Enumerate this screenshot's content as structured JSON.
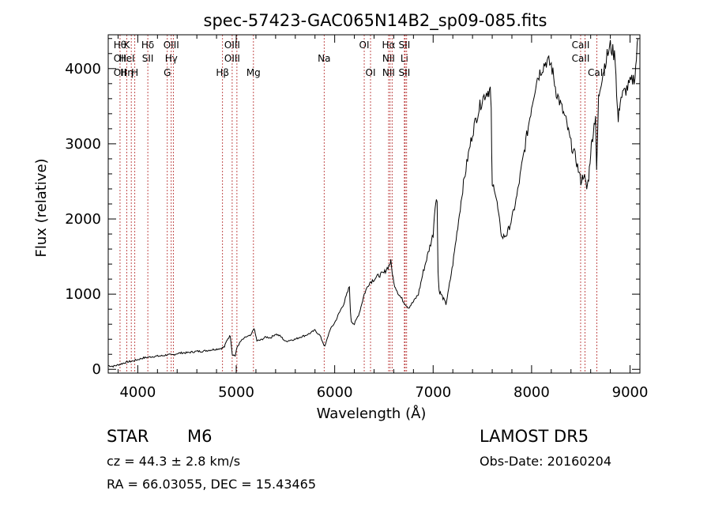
{
  "chart_data": {
    "type": "line",
    "title": "spec-57423-GAC065N14B2_sp09-085.fits",
    "xlabel": "Wavelength (Å)",
    "ylabel": "Flux (relative)",
    "xlim": [
      3700,
      9100
    ],
    "ylim": [
      -50,
      4450
    ],
    "xticks": [
      "4000",
      "5000",
      "6000",
      "7000",
      "8000",
      "9000"
    ],
    "yticks": [
      "0",
      "1000",
      "2000",
      "3000",
      "4000"
    ],
    "grid": false,
    "series": [
      {
        "x": [
          3700,
          3750,
          3800,
          3850,
          3900,
          3950,
          4000,
          4050,
          4100,
          4150,
          4200,
          4250,
          4300,
          4350,
          4400,
          4450,
          4500,
          4550,
          4600,
          4650,
          4700,
          4750,
          4800,
          4850,
          4880,
          4910,
          4940,
          4960,
          4990,
          5010,
          5050,
          5100,
          5150,
          5180,
          5210,
          5250,
          5300,
          5350,
          5400,
          5450,
          5500,
          5550,
          5600,
          5650,
          5700,
          5750,
          5800,
          5850,
          5900,
          5950,
          6000,
          6050,
          6100,
          6150,
          6160,
          6170,
          6200,
          6250,
          6300,
          6350,
          6400,
          6450,
          6500,
          6550,
          6570,
          6600,
          6650,
          6700,
          6750,
          6800,
          6850,
          6900,
          6950,
          7000,
          7020,
          7040,
          7050,
          7060,
          7080,
          7100,
          7130,
          7150,
          7200,
          7250,
          7300,
          7350,
          7400,
          7450,
          7500,
          7550,
          7580,
          7590,
          7600,
          7620,
          7650,
          7680,
          7700,
          7750,
          7800,
          7850,
          7900,
          7950,
          8000,
          8050,
          8100,
          8150,
          8200,
          8250,
          8300,
          8350,
          8400,
          8450,
          8500,
          8530,
          8560,
          8580,
          8600,
          8620,
          8650,
          8660,
          8680,
          8700,
          8750,
          8800,
          8850,
          8870,
          8880,
          8900,
          8950,
          9000,
          9050,
          9080
        ],
        "y": [
          50,
          40,
          60,
          80,
          100,
          110,
          130,
          150,
          160,
          170,
          175,
          180,
          195,
          190,
          210,
          220,
          220,
          230,
          240,
          240,
          250,
          260,
          270,
          280,
          300,
          400,
          450,
          200,
          180,
          300,
          380,
          430,
          450,
          550,
          380,
          390,
          430,
          420,
          470,
          440,
          370,
          390,
          400,
          430,
          450,
          480,
          520,
          450,
          300,
          520,
          620,
          760,
          900,
          1100,
          750,
          640,
          600,
          750,
          1000,
          1150,
          1200,
          1250,
          1280,
          1380,
          1430,
          1150,
          1000,
          900,
          820,
          900,
          1000,
          1300,
          1550,
          1800,
          2200,
          2250,
          1300,
          1050,
          1000,
          950,
          870,
          1000,
          1400,
          1900,
          2400,
          2800,
          3150,
          3400,
          3600,
          3700,
          3720,
          3400,
          2400,
          2450,
          2200,
          1900,
          1750,
          1800,
          2000,
          2300,
          2700,
          3100,
          3500,
          3850,
          4000,
          4100,
          4050,
          3700,
          3500,
          3300,
          3000,
          2800,
          2500,
          2600,
          2400,
          2550,
          2900,
          3100,
          3400,
          2600,
          3600,
          3800,
          4100,
          4300,
          4150,
          3500,
          3300,
          3600,
          3700,
          3800,
          3900,
          4400
        ]
      }
    ],
    "lines": [
      {
        "x": 3820,
        "labels": [
          "Hθ",
          "OII",
          "OII"
        ]
      },
      {
        "x": 3889,
        "labels": [
          "K",
          "HeI",
          "Hη"
        ]
      },
      {
        "x": 3934,
        "labels": [
          "",
          "",
          ""
        ]
      },
      {
        "x": 3970,
        "labels": [
          "",
          "",
          "H"
        ]
      },
      {
        "x": 4102,
        "labels": [
          "Hδ",
          "SII",
          ""
        ]
      },
      {
        "x": 4300,
        "labels": [
          "",
          "",
          "G"
        ]
      },
      {
        "x": 4340,
        "labels": [
          "OIII",
          "Hγ",
          ""
        ]
      },
      {
        "x": 4363,
        "labels": [
          "",
          "",
          ""
        ]
      },
      {
        "x": 4861,
        "labels": [
          "",
          "",
          "Hβ"
        ]
      },
      {
        "x": 4959,
        "labels": [
          "OIII",
          "OIII",
          ""
        ]
      },
      {
        "x": 5007,
        "labels": [
          "",
          "",
          ""
        ]
      },
      {
        "x": 5175,
        "labels": [
          "",
          "",
          "Mg"
        ]
      },
      {
        "x": 5893,
        "labels": [
          "",
          "Na",
          ""
        ]
      },
      {
        "x": 6300,
        "labels": [
          "OI",
          "",
          ""
        ]
      },
      {
        "x": 6364,
        "labels": [
          "",
          "",
          "OI"
        ]
      },
      {
        "x": 6548,
        "labels": [
          "Hα",
          "NII",
          "NII"
        ]
      },
      {
        "x": 6563,
        "labels": [
          "",
          "",
          ""
        ]
      },
      {
        "x": 6583,
        "labels": [
          "",
          "",
          ""
        ]
      },
      {
        "x": 6708,
        "labels": [
          "SII",
          "Li",
          "SII"
        ]
      },
      {
        "x": 6716,
        "labels": [
          "",
          "",
          ""
        ]
      },
      {
        "x": 6731,
        "labels": [
          "",
          "",
          ""
        ]
      },
      {
        "x": 8498,
        "labels": [
          "CaII",
          "CaII",
          ""
        ]
      },
      {
        "x": 8542,
        "labels": [
          "",
          "",
          ""
        ]
      },
      {
        "x": 8662,
        "labels": [
          "",
          "",
          "CaII"
        ]
      }
    ]
  },
  "info": {
    "object_class": "STAR",
    "subclass": "M6",
    "survey": "LAMOST  DR5",
    "cz": "cz = 44.3 ± 2.8 km/s",
    "obs_date": "Obs-Date: 20160204",
    "radec": "RA =  66.03055, DEC =  15.43465"
  },
  "colors": {
    "spectrum": "#000000",
    "lines": "#b22222",
    "axes": "#000000"
  }
}
